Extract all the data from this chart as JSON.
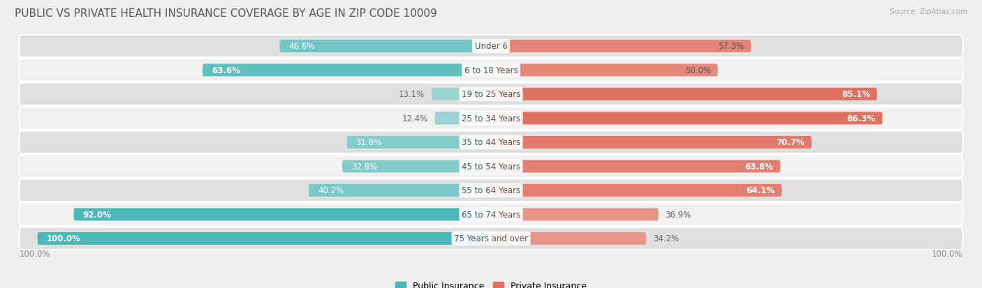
{
  "title": "PUBLIC VS PRIVATE HEALTH INSURANCE COVERAGE BY AGE IN ZIP CODE 10009",
  "source": "Source: ZipAtlas.com",
  "categories": [
    "Under 6",
    "6 to 18 Years",
    "19 to 25 Years",
    "25 to 34 Years",
    "35 to 44 Years",
    "45 to 54 Years",
    "55 to 64 Years",
    "65 to 74 Years",
    "75 Years and over"
  ],
  "public_values": [
    46.6,
    63.6,
    13.1,
    12.4,
    31.8,
    32.8,
    40.2,
    92.0,
    100.0
  ],
  "private_values": [
    57.3,
    50.0,
    85.1,
    86.3,
    70.7,
    63.8,
    64.1,
    36.9,
    34.2
  ],
  "public_color_full": "#4ab8b8",
  "public_color_light": "#a8d8d8",
  "private_color_full": "#e07060",
  "private_color_light": "#f0b0a8",
  "bar_height": 0.52,
  "background_color": "#eeeeee",
  "row_bg_dark": "#e0e0e0",
  "row_bg_light": "#f0f0f0",
  "title_fontsize": 11,
  "label_fontsize": 8.5,
  "value_fontsize": 8.5,
  "legend_fontsize": 9,
  "axis_max": 100.0,
  "public_inside_threshold": 18,
  "private_inside_threshold": 50
}
